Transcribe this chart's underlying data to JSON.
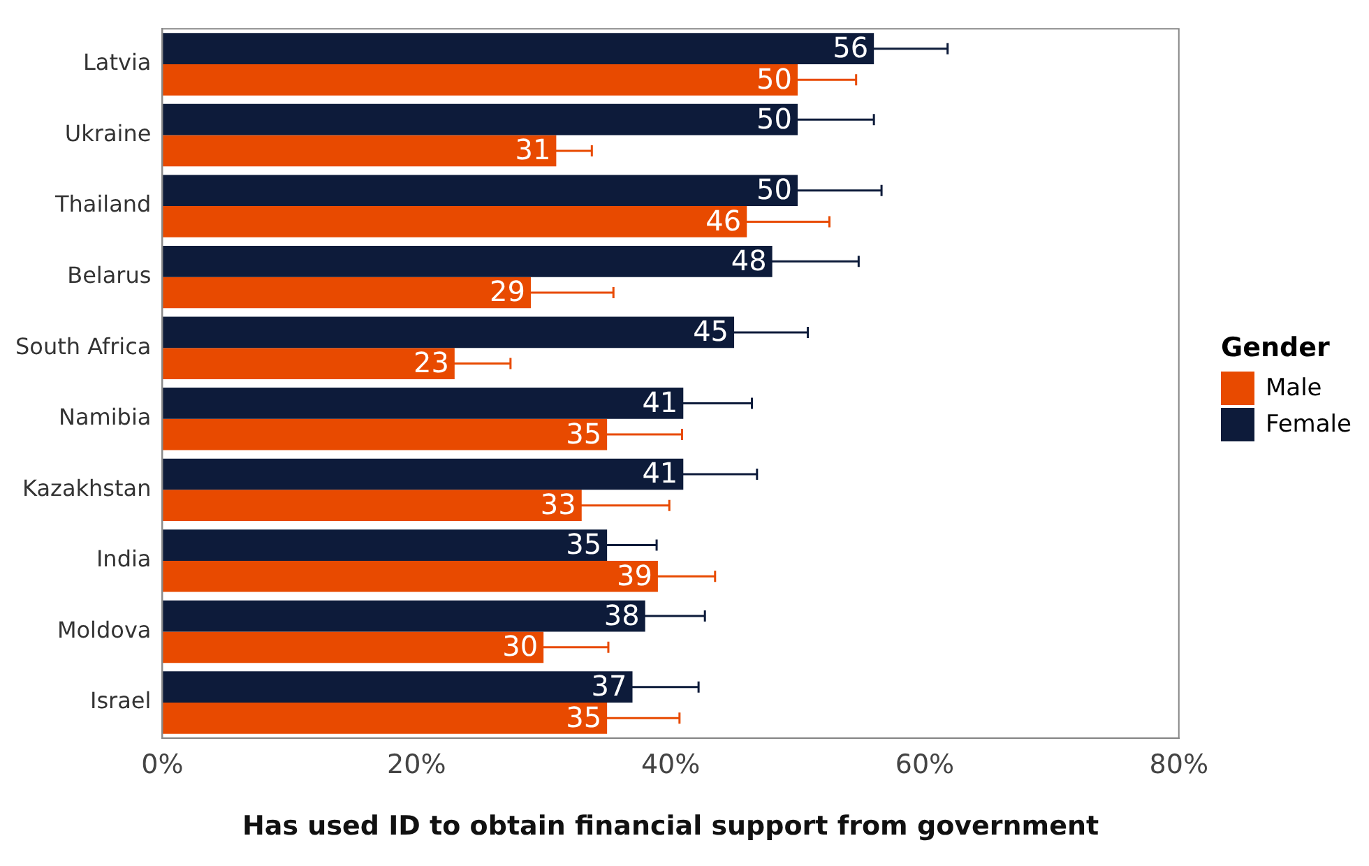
{
  "chart_data": {
    "type": "bar",
    "orientation": "horizontal",
    "xlabel": "Has used ID to obtain financial support from government",
    "legend_title": "Gender",
    "legend": "right",
    "categories": [
      "Latvia",
      "Ukraine",
      "Thailand",
      "Belarus",
      "South Africa",
      "Namibia",
      "Kazakhstan",
      "India",
      "Moldova",
      "Israel"
    ],
    "series": [
      {
        "name": "Male",
        "color": "#e84a00",
        "values": [
          50,
          31,
          46,
          29,
          23,
          35,
          33,
          39,
          30,
          35
        ],
        "errors": [
          4.6,
          2.8,
          6.5,
          6.5,
          4.4,
          5.9,
          6.9,
          4.5,
          5.1,
          5.7
        ]
      },
      {
        "name": "Female",
        "color": "#0d1b3a",
        "values": [
          56,
          50,
          50,
          48,
          45,
          41,
          41,
          35,
          38,
          37
        ],
        "errors": [
          5.8,
          6,
          6.6,
          6.8,
          5.8,
          5.4,
          5.8,
          3.9,
          4.7,
          5.2
        ]
      }
    ],
    "xlim": [
      0,
      80
    ],
    "xticks": [
      {
        "value": 0,
        "label": "0%"
      },
      {
        "value": 20,
        "label": "20%"
      },
      {
        "value": 40,
        "label": "40%"
      },
      {
        "value": 60,
        "label": "60%"
      },
      {
        "value": 80,
        "label": "80%"
      }
    ],
    "data_labels": true,
    "grid": false
  }
}
